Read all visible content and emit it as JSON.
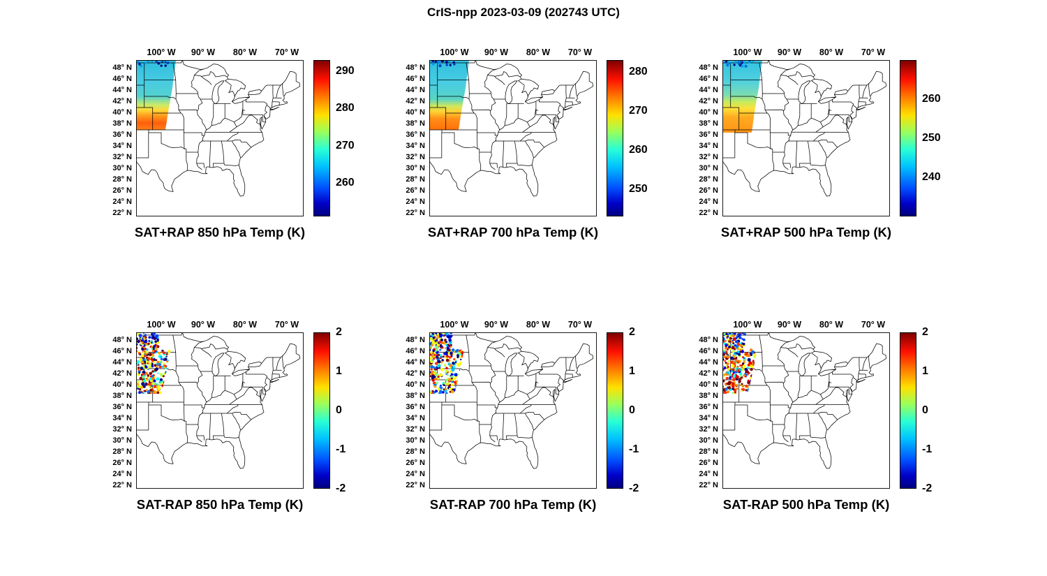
{
  "figure_title": "CrIS-npp 2023-03-09 (202743 UTC)",
  "axes": {
    "lon_ticks": [
      "100° W",
      "90° W",
      "80° W",
      "70° W"
    ],
    "lat_ticks": [
      "48° N",
      "46° N",
      "44° N",
      "42° N",
      "40° N",
      "38° N",
      "36° N",
      "34° N",
      "32° N",
      "30° N",
      "28° N",
      "26° N",
      "24° N",
      "22° N"
    ]
  },
  "panels": [
    {
      "title": "SAT+RAP 850 hPa Temp (K)",
      "swath_type": "absolute",
      "colorbar": {
        "min": 251,
        "max": 293,
        "ticks": [
          290,
          280,
          270,
          260
        ]
      }
    },
    {
      "title": "SAT+RAP 700 hPa Temp (K)",
      "swath_type": "absolute",
      "colorbar": {
        "min": 243,
        "max": 283,
        "ticks": [
          280,
          270,
          260,
          250
        ]
      }
    },
    {
      "title": "SAT+RAP 500 hPa Temp (K)",
      "swath_type": "absolute",
      "colorbar": {
        "min": 230,
        "max": 270,
        "ticks": [
          260,
          250,
          240
        ]
      }
    },
    {
      "title": "SAT-RAP 850 hPa Temp (K)",
      "swath_type": "difference",
      "colorbar": {
        "min": -2,
        "max": 2,
        "ticks": [
          2,
          1,
          0,
          -1,
          -2
        ]
      }
    },
    {
      "title": "SAT-RAP 700 hPa Temp (K)",
      "swath_type": "difference",
      "colorbar": {
        "min": -2,
        "max": 2,
        "ticks": [
          2,
          1,
          0,
          -1,
          -2
        ]
      }
    },
    {
      "title": "SAT-RAP 500 hPa Temp (K)",
      "swath_type": "difference",
      "colorbar": {
        "min": -2,
        "max": 2,
        "ticks": [
          2,
          1,
          0,
          -1,
          -2
        ]
      }
    }
  ],
  "colors": {
    "colormap": "jet",
    "jet_stops": [
      "#7f0000",
      "#ff1000",
      "#ff8000",
      "#ffe000",
      "#9aff5c",
      "#2affd4",
      "#00c4ff",
      "#0050ff",
      "#0000c8",
      "#00007f"
    ],
    "map_line": "#000000",
    "text": "#000000",
    "background": "#ffffff"
  },
  "chart_data": [
    {
      "type": "heatmap",
      "title": "SAT+RAP 850 hPa Temp (K)",
      "units": "K",
      "colormap": "jet",
      "colorbar_range": [
        251,
        293
      ],
      "colorbar_ticks": [
        260,
        270,
        280,
        290
      ],
      "x_axis": {
        "label": "longitude",
        "ticks_deg_w": [
          100,
          90,
          80,
          70
        ]
      },
      "y_axis": {
        "label": "latitude",
        "ticks_deg_n": [
          48,
          46,
          44,
          42,
          40,
          38,
          36,
          34,
          32,
          30,
          28,
          26,
          24,
          22
        ]
      },
      "map_extent": {
        "lon_deg_w": [
          106,
          66
        ],
        "lat_deg_n": [
          21.5,
          49.5
        ]
      },
      "swath": {
        "lon_deg_w": [
          106,
          97
        ],
        "lat_deg_n": [
          37,
          49.5
        ],
        "values_summary": [
          {
            "lat_deg_n": [
              41.5,
              49.5
            ],
            "temp_k": [
              256,
              266
            ],
            "appearance": "cyan/light blue"
          },
          {
            "lat_deg_n": [
              37,
              41.5
            ],
            "temp_k": [
              274,
              288
            ],
            "appearance": "yellow/orange/red patch"
          }
        ]
      }
    },
    {
      "type": "heatmap",
      "title": "SAT+RAP 700 hPa Temp (K)",
      "units": "K",
      "colormap": "jet",
      "colorbar_range": [
        243,
        283
      ],
      "colorbar_ticks": [
        250,
        260,
        270,
        280
      ],
      "x_axis": {
        "label": "longitude",
        "ticks_deg_w": [
          100,
          90,
          80,
          70
        ]
      },
      "y_axis": {
        "label": "latitude",
        "ticks_deg_n": [
          48,
          46,
          44,
          42,
          40,
          38,
          36,
          34,
          32,
          30,
          28,
          26,
          24,
          22
        ]
      },
      "map_extent": {
        "lon_deg_w": [
          106,
          66
        ],
        "lat_deg_n": [
          21.5,
          49.5
        ]
      },
      "swath": {
        "lon_deg_w": [
          106,
          97
        ],
        "lat_deg_n": [
          37,
          49.5
        ],
        "values_summary": [
          {
            "lat_deg_n": [
              41.5,
              49.5
            ],
            "temp_k": [
              252,
              262
            ],
            "appearance": "cyan/light blue"
          },
          {
            "lat_deg_n": [
              37,
              41.5
            ],
            "temp_k": [
              268,
              279
            ],
            "appearance": "yellow/orange/red patch"
          }
        ]
      }
    },
    {
      "type": "heatmap",
      "title": "SAT+RAP 500 hPa Temp (K)",
      "units": "K",
      "colormap": "jet",
      "colorbar_range": [
        230,
        270
      ],
      "colorbar_ticks": [
        240,
        250,
        260
      ],
      "x_axis": {
        "label": "longitude",
        "ticks_deg_w": [
          100,
          90,
          80,
          70
        ]
      },
      "y_axis": {
        "label": "latitude",
        "ticks_deg_n": [
          48,
          46,
          44,
          42,
          40,
          38,
          36,
          34,
          32,
          30,
          28,
          26,
          24,
          22
        ]
      },
      "map_extent": {
        "lon_deg_w": [
          106,
          66
        ],
        "lat_deg_n": [
          21.5,
          49.5
        ]
      },
      "swath": {
        "lon_deg_w": [
          106,
          97
        ],
        "lat_deg_n": [
          36.5,
          49.5
        ],
        "values_summary": [
          {
            "lat_deg_n": [
              42,
              49.5
            ],
            "temp_k": [
              240,
              249
            ],
            "appearance": "cyan/light blue"
          },
          {
            "lat_deg_n": [
              36.5,
              42
            ],
            "temp_k": [
              252,
              263
            ],
            "appearance": "yellow/orange patch"
          }
        ]
      }
    },
    {
      "type": "scatter",
      "title": "SAT-RAP 850 hPa Temp (K)",
      "units": "K",
      "colormap": "jet",
      "colorbar_range": [
        -2,
        2
      ],
      "colorbar_ticks": [
        -2,
        -1,
        0,
        1,
        2
      ],
      "x_axis": {
        "label": "longitude",
        "ticks_deg_w": [
          100,
          90,
          80,
          70
        ]
      },
      "y_axis": {
        "label": "latitude",
        "ticks_deg_n": [
          48,
          46,
          44,
          42,
          40,
          38,
          36,
          34,
          32,
          30,
          28,
          26,
          24,
          22
        ]
      },
      "map_extent": {
        "lon_deg_w": [
          106,
          66
        ],
        "lat_deg_n": [
          21.5,
          49.5
        ]
      },
      "swath": {
        "lon_deg_w": [
          106,
          98
        ],
        "lat_deg_n": [
          39,
          49.5
        ],
        "values_summary": "Speckled differences spanning -2 to +2 K; cluster of <= -2 K (dark blue) 46-49.5N near 103-106W; mixed +/-1-2 K speckle 39-45N"
      }
    },
    {
      "type": "scatter",
      "title": "SAT-RAP 700 hPa Temp (K)",
      "units": "K",
      "colormap": "jet",
      "colorbar_range": [
        -2,
        2
      ],
      "colorbar_ticks": [
        -2,
        -1,
        0,
        1,
        2
      ],
      "x_axis": {
        "label": "longitude",
        "ticks_deg_w": [
          100,
          90,
          80,
          70
        ]
      },
      "y_axis": {
        "label": "latitude",
        "ticks_deg_n": [
          48,
          46,
          44,
          42,
          40,
          38,
          36,
          34,
          32,
          30,
          28,
          26,
          24,
          22
        ]
      },
      "map_extent": {
        "lon_deg_w": [
          106,
          66
        ],
        "lat_deg_n": [
          21.5,
          49.5
        ]
      },
      "swath": {
        "lon_deg_w": [
          106,
          98
        ],
        "lat_deg_n": [
          38.5,
          49.5
        ],
        "values_summary": "Dense -2 K (dark blue) cluster 46-49.5N; mixed cyan/yellow/red speckle 38.5-46N; data ends near 38.5N"
      }
    },
    {
      "type": "scatter",
      "title": "SAT-RAP 500 hPa Temp (K)",
      "units": "K",
      "colormap": "jet",
      "colorbar_range": [
        -2,
        2
      ],
      "colorbar_ticks": [
        -2,
        -1,
        0,
        1,
        2
      ],
      "x_axis": {
        "label": "longitude",
        "ticks_deg_w": [
          100,
          90,
          80,
          70
        ]
      },
      "y_axis": {
        "label": "latitude",
        "ticks_deg_n": [
          48,
          46,
          44,
          42,
          40,
          38,
          36,
          34,
          32,
          30,
          28,
          26,
          24,
          22
        ]
      },
      "map_extent": {
        "lon_deg_w": [
          106,
          66
        ],
        "lat_deg_n": [
          21.5,
          49.5
        ]
      },
      "sw ath_note": null,
      "swath": {
        "lon_deg_w": [
          106,
          98
        ],
        "lat_deg_n": [
          38.5,
          49.5
        ],
        "values_summary": "Mixed speckle with prominent +1 to +2 K (red/orange) cluster 39-44N; scattered -2 K (dark blue) dots 45-49.5N"
      }
    }
  ]
}
